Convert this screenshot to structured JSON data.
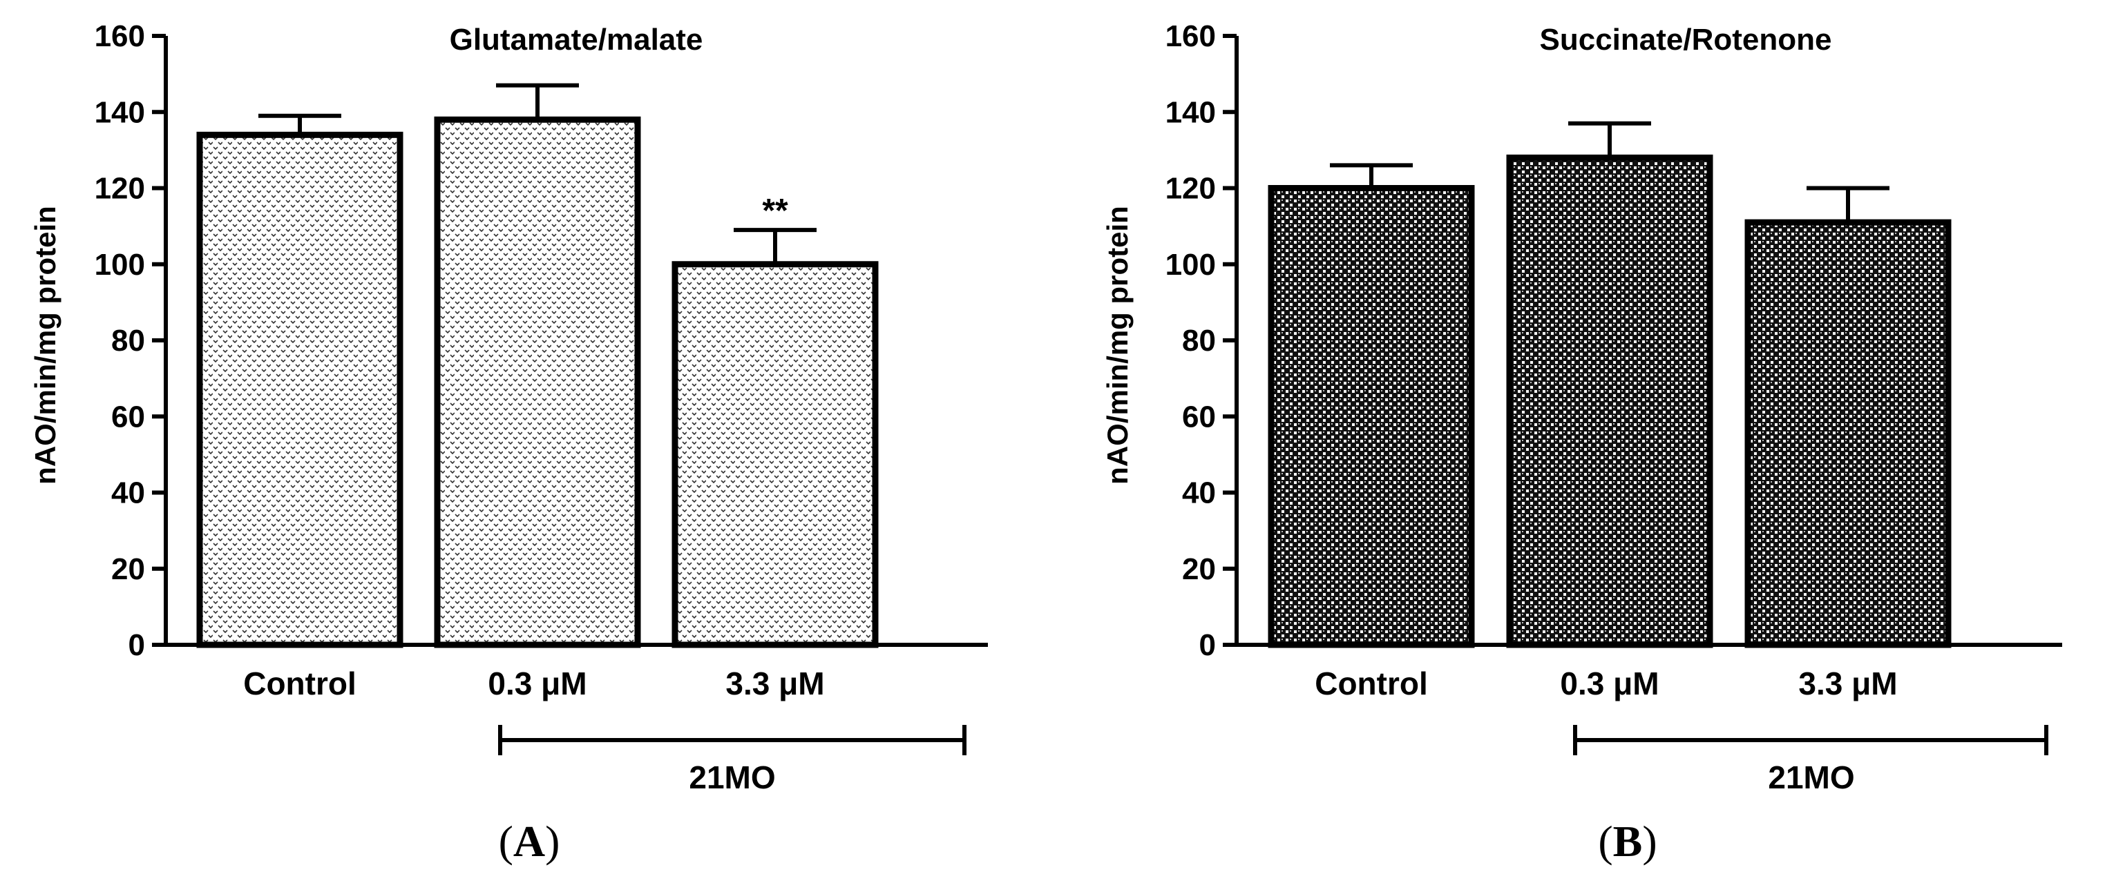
{
  "chart_data": [
    {
      "type": "bar",
      "panel": "A",
      "title": "Glutamate/malate",
      "ylabel": "nAO/min/mg protein",
      "xlabel": "",
      "ylim": [
        0,
        160
      ],
      "yticks": [
        0,
        20,
        40,
        60,
        80,
        100,
        120,
        140,
        160
      ],
      "categories": [
        "Control",
        "0.3 μM",
        "3.3 μM"
      ],
      "values": [
        134,
        138,
        100
      ],
      "errors": [
        5,
        9,
        9
      ],
      "annotations": [
        "",
        "",
        "**"
      ],
      "group_label": "21MO",
      "pattern": "dotted-light"
    },
    {
      "type": "bar",
      "panel": "B",
      "title": "Succinate/Rotenone",
      "ylabel": "nAO/min/mg protein",
      "xlabel": "",
      "ylim": [
        0,
        160
      ],
      "yticks": [
        0,
        20,
        40,
        60,
        80,
        100,
        120,
        140,
        160
      ],
      "categories": [
        "Control",
        "0.3 μM",
        "3.3 μM"
      ],
      "values": [
        120,
        128,
        111
      ],
      "errors": [
        6,
        9,
        9
      ],
      "annotations": [
        "",
        "",
        ""
      ],
      "group_label": "21MO",
      "pattern": "checker-dark"
    }
  ]
}
